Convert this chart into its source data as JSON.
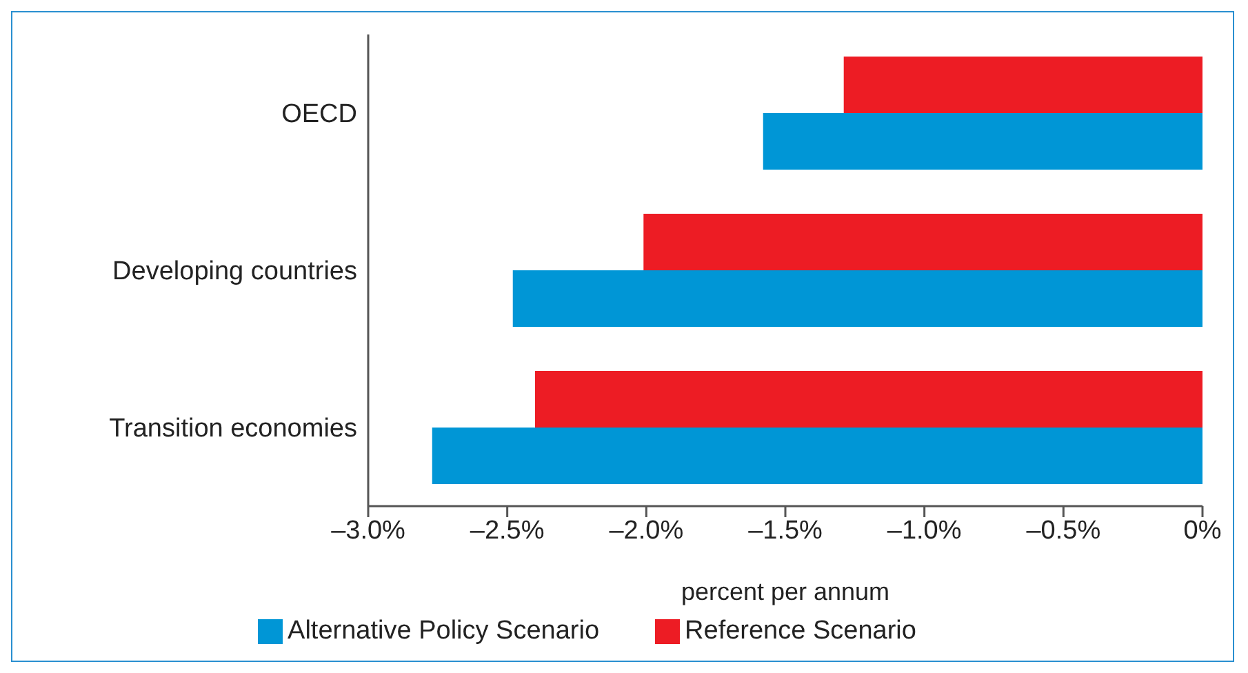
{
  "chart_data": {
    "type": "bar",
    "orientation": "horizontal",
    "categories": [
      "OECD",
      "Developing countries",
      "Transition economies"
    ],
    "series": [
      {
        "name": "Reference Scenario",
        "color": "#ed1c24",
        "values": [
          -1.29,
          -2.01,
          -2.4
        ]
      },
      {
        "name": "Alternative Policy Scenario",
        "color": "#0096d6",
        "values": [
          -1.58,
          -2.48,
          -2.77
        ]
      }
    ],
    "xlim": [
      -3,
      0
    ],
    "xticks": [
      {
        "value": -3,
        "label": "–3.0%"
      },
      {
        "value": -2.5,
        "label": "–2.5%"
      },
      {
        "value": -2,
        "label": "–2.0%"
      },
      {
        "value": -1.5,
        "label": "–1.5%"
      },
      {
        "value": -1,
        "label": "–1.0%"
      },
      {
        "value": -0.5,
        "label": "–0.5%"
      },
      {
        "value": 0,
        "label": "0%"
      }
    ],
    "xlabel": "percent per annum",
    "grid": false,
    "legend": "bottom"
  }
}
